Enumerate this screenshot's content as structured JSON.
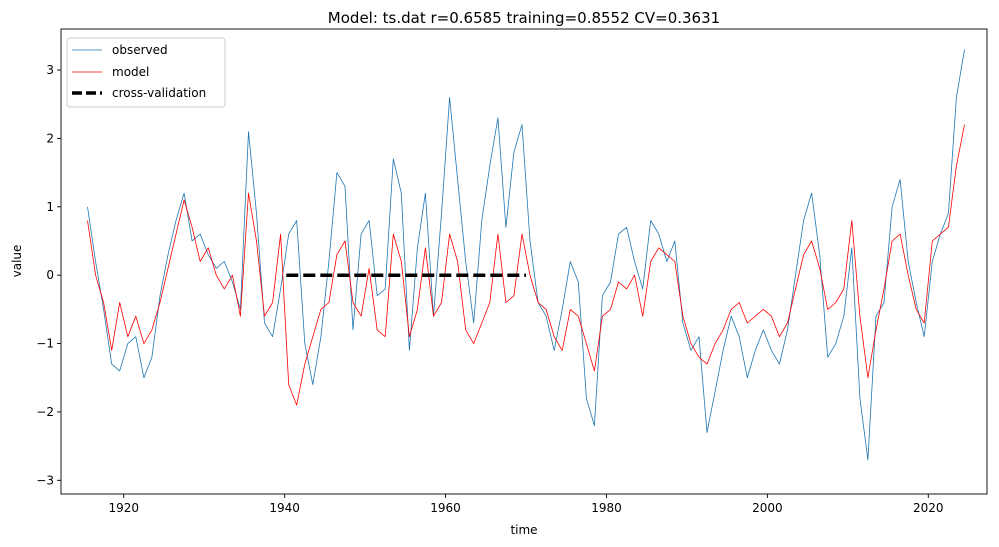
{
  "chart_data": {
    "type": "line",
    "title": "Model: ts.dat  r=0.6585  training=0.8552  CV=0.3631",
    "xlabel": "time",
    "ylabel": "value",
    "xlim": [
      1912.2,
      2027.3
    ],
    "ylim": [
      -3.2,
      3.6
    ],
    "xticks": [
      1920,
      1940,
      1960,
      1980,
      2000,
      2020
    ],
    "yticks": [
      -3,
      -2,
      -1,
      0,
      1,
      2,
      3
    ],
    "legend_position": "top-left",
    "series": [
      {
        "name": "observed",
        "color": "#1f77b4",
        "style": "solid-thin",
        "x": [
          1915.5,
          1916.5,
          1917.5,
          1918.5,
          1919.5,
          1920.5,
          1921.5,
          1922.5,
          1923.5,
          1924.5,
          1925.5,
          1926.5,
          1927.5,
          1928.5,
          1929.5,
          1930.5,
          1931.5,
          1932.5,
          1933.5,
          1934.5,
          1935.5,
          1936.5,
          1937.5,
          1938.5,
          1939.5,
          1940.5,
          1941.5,
          1942.5,
          1943.5,
          1944.5,
          1945.5,
          1946.5,
          1947.5,
          1948.5,
          1949.5,
          1950.5,
          1951.5,
          1952.5,
          1953.5,
          1954.5,
          1955.5,
          1956.5,
          1957.5,
          1958.5,
          1959.5,
          1960.5,
          1961.5,
          1962.5,
          1963.5,
          1964.5,
          1965.5,
          1966.5,
          1967.5,
          1968.5,
          1969.5,
          1970.5,
          1971.5,
          1972.5,
          1973.5,
          1974.5,
          1975.5,
          1976.5,
          1977.5,
          1978.5,
          1979.5,
          1980.5,
          1981.5,
          1982.5,
          1983.5,
          1984.5,
          1985.5,
          1986.5,
          1987.5,
          1988.5,
          1989.5,
          1990.5,
          1991.5,
          1992.5,
          1993.5,
          1994.5,
          1995.5,
          1996.5,
          1997.5,
          1998.5,
          1999.5,
          2000.5,
          2001.5,
          2002.5,
          2003.5,
          2004.5,
          2005.5,
          2006.5,
          2007.5,
          2008.5,
          2009.5,
          2010.5,
          2011.5,
          2012.5,
          2013.5,
          2014.5,
          2015.5,
          2016.5,
          2017.5,
          2018.5,
          2019.5,
          2020.5,
          2021.5,
          2022.5,
          2023.5,
          2024.5
        ],
        "y": [
          1.0,
          0.2,
          -0.5,
          -1.3,
          -1.4,
          -1.0,
          -0.9,
          -1.5,
          -1.2,
          -0.3,
          0.3,
          0.8,
          1.2,
          0.5,
          0.6,
          0.3,
          0.1,
          0.2,
          -0.1,
          -0.5,
          2.1,
          0.9,
          -0.7,
          -0.9,
          -0.2,
          0.6,
          0.8,
          -1.0,
          -1.6,
          -0.9,
          0.2,
          1.5,
          1.3,
          -0.8,
          0.6,
          0.8,
          -0.3,
          -0.2,
          1.7,
          1.2,
          -1.1,
          0.4,
          1.2,
          -0.6,
          0.9,
          2.6,
          1.4,
          0.2,
          -0.7,
          0.8,
          1.6,
          2.3,
          0.7,
          1.8,
          2.2,
          0.5,
          -0.4,
          -0.6,
          -1.1,
          -0.5,
          0.2,
          -0.1,
          -1.8,
          -2.2,
          -0.3,
          -0.1,
          0.6,
          0.7,
          0.2,
          -0.2,
          0.8,
          0.6,
          0.2,
          0.5,
          -0.7,
          -1.1,
          -0.9,
          -2.3,
          -1.7,
          -1.1,
          -0.6,
          -0.9,
          -1.5,
          -1.1,
          -0.8,
          -1.1,
          -1.3,
          -0.8,
          0.0,
          0.8,
          1.2,
          0.3,
          -1.2,
          -1.0,
          -0.6,
          0.4,
          -1.8,
          -2.7,
          -0.6,
          -0.4,
          1.0,
          1.4,
          0.2,
          -0.4,
          -0.9,
          0.2,
          0.6,
          0.9,
          2.6,
          3.3
        ]
      },
      {
        "name": "model",
        "color": "#ff0000",
        "style": "solid-thin",
        "x": [
          1915.5,
          1916.5,
          1917.5,
          1918.5,
          1919.5,
          1920.5,
          1921.5,
          1922.5,
          1923.5,
          1924.5,
          1925.5,
          1926.5,
          1927.5,
          1928.5,
          1929.5,
          1930.5,
          1931.5,
          1932.5,
          1933.5,
          1934.5,
          1935.5,
          1936.5,
          1937.5,
          1938.5,
          1939.5,
          1940.5,
          1941.5,
          1942.5,
          1943.5,
          1944.5,
          1945.5,
          1946.5,
          1947.5,
          1948.5,
          1949.5,
          1950.5,
          1951.5,
          1952.5,
          1953.5,
          1954.5,
          1955.5,
          1956.5,
          1957.5,
          1958.5,
          1959.5,
          1960.5,
          1961.5,
          1962.5,
          1963.5,
          1964.5,
          1965.5,
          1966.5,
          1967.5,
          1968.5,
          1969.5,
          1970.5,
          1971.5,
          1972.5,
          1973.5,
          1974.5,
          1975.5,
          1976.5,
          1977.5,
          1978.5,
          1979.5,
          1980.5,
          1981.5,
          1982.5,
          1983.5,
          1984.5,
          1985.5,
          1986.5,
          1987.5,
          1988.5,
          1989.5,
          1990.5,
          1991.5,
          1992.5,
          1993.5,
          1994.5,
          1995.5,
          1996.5,
          1997.5,
          1998.5,
          1999.5,
          2000.5,
          2001.5,
          2002.5,
          2003.5,
          2004.5,
          2005.5,
          2006.5,
          2007.5,
          2008.5,
          2009.5,
          2010.5,
          2011.5,
          2012.5,
          2013.5,
          2014.5,
          2015.5,
          2016.5,
          2017.5,
          2018.5,
          2019.5,
          2020.5,
          2021.5,
          2022.5,
          2023.5,
          2024.5
        ],
        "y": [
          0.8,
          0.0,
          -0.4,
          -1.1,
          -0.4,
          -0.9,
          -0.6,
          -1.0,
          -0.8,
          -0.4,
          0.1,
          0.6,
          1.1,
          0.7,
          0.2,
          0.4,
          0.0,
          -0.2,
          0.0,
          -0.6,
          1.2,
          0.5,
          -0.6,
          -0.4,
          0.6,
          -1.6,
          -1.9,
          -1.3,
          -0.9,
          -0.5,
          -0.4,
          0.3,
          0.5,
          -0.4,
          -0.6,
          0.1,
          -0.8,
          -0.9,
          0.6,
          0.2,
          -0.9,
          -0.5,
          0.4,
          -0.6,
          -0.4,
          0.6,
          0.2,
          -0.8,
          -1.0,
          -0.7,
          -0.4,
          0.6,
          -0.4,
          -0.3,
          0.6,
          0.0,
          -0.4,
          -0.5,
          -0.9,
          -1.1,
          -0.5,
          -0.6,
          -1.0,
          -1.4,
          -0.6,
          -0.5,
          -0.1,
          -0.2,
          0.0,
          -0.6,
          0.2,
          0.4,
          0.3,
          0.2,
          -0.6,
          -1.0,
          -1.2,
          -1.3,
          -1.0,
          -0.8,
          -0.5,
          -0.4,
          -0.7,
          -0.6,
          -0.5,
          -0.6,
          -0.9,
          -0.7,
          -0.2,
          0.3,
          0.5,
          0.1,
          -0.5,
          -0.4,
          -0.2,
          0.8,
          -0.6,
          -1.5,
          -0.8,
          -0.2,
          0.5,
          0.6,
          0.0,
          -0.5,
          -0.7,
          0.5,
          0.6,
          0.7,
          1.6,
          2.2
        ]
      },
      {
        "name": "cross-validation",
        "color": "#000000",
        "style": "dashed-thick",
        "x": [
          1940.2,
          1970.0
        ],
        "y": [
          0.0,
          0.0
        ]
      }
    ]
  }
}
